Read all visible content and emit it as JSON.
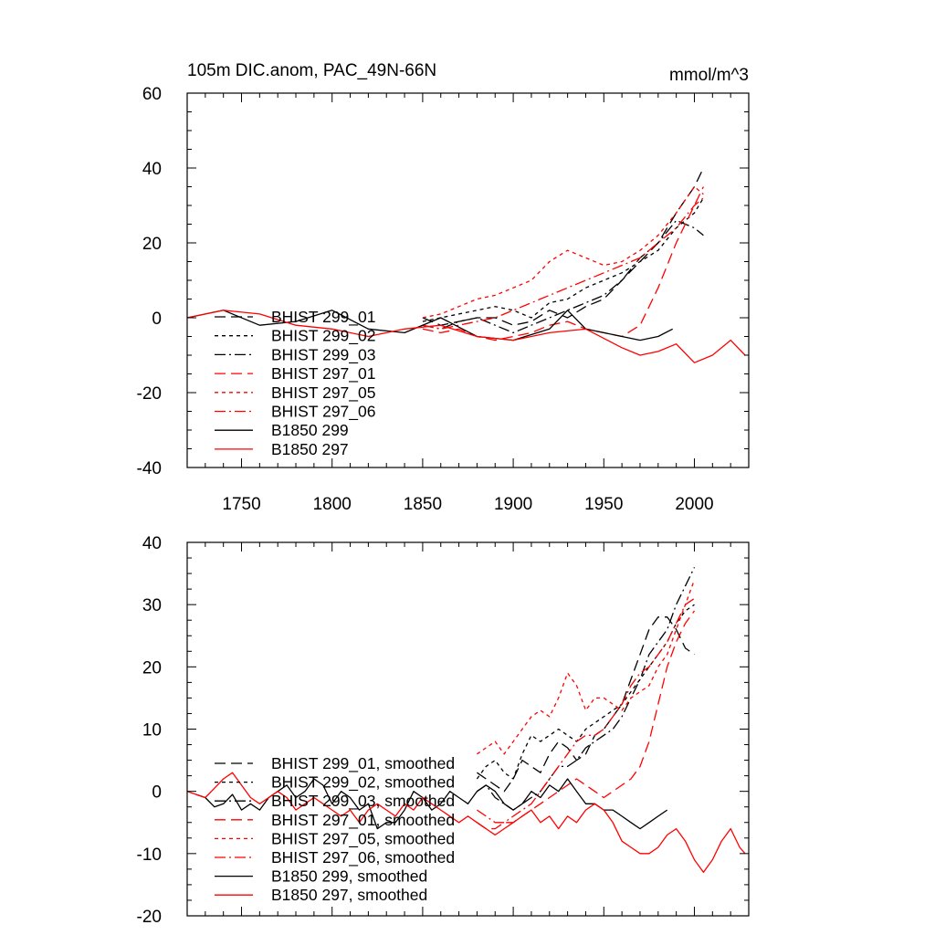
{
  "chart_data": [
    {
      "type": "line",
      "title": "105m DIC.anom, PAC_49N-66N",
      "units": "mmol/m^3",
      "xlim": [
        1720,
        2030
      ],
      "ylim": [
        -40,
        60
      ],
      "y_ticks": [
        -40,
        -20,
        0,
        20,
        40,
        60
      ],
      "x_ticks": [
        1750,
        1800,
        1850,
        1900,
        1950,
        2000
      ],
      "grid": false,
      "legend_position": "lower-left",
      "series": [
        {
          "name": "BHIST 299_01",
          "color": "#000000",
          "dash": "long-dash",
          "x": [
            1850,
            1860,
            1870,
            1880,
            1890,
            1900,
            1910,
            1920,
            1930,
            1940,
            1950,
            1960,
            1970,
            1980,
            1990,
            2000,
            2005
          ],
          "y": [
            0,
            -2,
            -1,
            0,
            0,
            -2,
            -1,
            2,
            0,
            3,
            5,
            10,
            15,
            20,
            28,
            35,
            40
          ]
        },
        {
          "name": "BHIST 299_02",
          "color": "#000000",
          "dash": "short-dash",
          "x": [
            1850,
            1860,
            1870,
            1880,
            1890,
            1900,
            1910,
            1920,
            1930,
            1940,
            1950,
            1960,
            1970,
            1980,
            1990,
            2000,
            2005
          ],
          "y": [
            -1,
            0,
            1,
            2,
            3,
            2,
            0,
            4,
            5,
            8,
            10,
            12,
            15,
            18,
            24,
            28,
            32
          ]
        },
        {
          "name": "BHIST 299_03",
          "color": "#000000",
          "dash": "dash-dot",
          "x": [
            1850,
            1860,
            1870,
            1880,
            1890,
            1900,
            1910,
            1920,
            1930,
            1940,
            1950,
            1960,
            1970,
            1980,
            1990,
            2000,
            2005
          ],
          "y": [
            -2,
            -3,
            -1,
            0,
            -2,
            -4,
            -2,
            0,
            2,
            4,
            6,
            10,
            16,
            20,
            26,
            24,
            22
          ]
        },
        {
          "name": "BHIST 297_01",
          "color": "#ff0000",
          "dash": "long-dash",
          "x": [
            1850,
            1860,
            1870,
            1880,
            1890,
            1900,
            1910,
            1920,
            1930,
            1940,
            1950,
            1960,
            1970,
            1980,
            1990,
            2000,
            2005
          ],
          "y": [
            -3,
            -4,
            -3,
            -5,
            -6,
            -5,
            -4,
            -2,
            -1,
            -3,
            -4,
            -5,
            -2,
            8,
            20,
            30,
            35
          ]
        },
        {
          "name": "BHIST 297_05",
          "color": "#ff0000",
          "dash": "short-dash",
          "x": [
            1850,
            1860,
            1870,
            1880,
            1890,
            1900,
            1910,
            1920,
            1930,
            1940,
            1950,
            1960,
            1970,
            1980,
            1990,
            2000,
            2005
          ],
          "y": [
            0,
            1,
            3,
            5,
            6,
            8,
            10,
            15,
            18,
            16,
            14,
            15,
            18,
            22,
            28,
            35,
            33
          ]
        },
        {
          "name": "BHIST 297_06",
          "color": "#ff0000",
          "dash": "dash-dot",
          "x": [
            1850,
            1860,
            1870,
            1880,
            1890,
            1900,
            1910,
            1920,
            1930,
            1940,
            1950,
            1960,
            1970,
            1980,
            1990,
            2000,
            2005
          ],
          "y": [
            -2,
            -3,
            -2,
            -1,
            0,
            2,
            4,
            6,
            8,
            10,
            12,
            14,
            16,
            20,
            24,
            30,
            32
          ]
        },
        {
          "name": "B1850 299",
          "color": "#000000",
          "dash": "solid",
          "x": [
            1720,
            1740,
            1760,
            1780,
            1800,
            1820,
            1840,
            1860,
            1880,
            1900,
            1920,
            1930,
            1940,
            1950,
            1960,
            1970,
            1980,
            1988
          ],
          "y": [
            0,
            2,
            -2,
            -1,
            2,
            -3,
            -4,
            0,
            -5,
            -6,
            -3,
            2,
            -3,
            -4,
            -5,
            -6,
            -5,
            -3
          ]
        },
        {
          "name": "B1850 297",
          "color": "#ff0000",
          "dash": "solid",
          "x": [
            1720,
            1740,
            1760,
            1780,
            1800,
            1820,
            1840,
            1860,
            1880,
            1900,
            1920,
            1940,
            1960,
            1970,
            1980,
            1990,
            2000,
            2010,
            2020,
            2028
          ],
          "y": [
            0,
            2,
            1,
            -2,
            -3,
            -5,
            -3,
            -2,
            -5,
            -6,
            -4,
            -3,
            -8,
            -10,
            -9,
            -7,
            -12,
            -10,
            -6,
            -10
          ]
        }
      ]
    },
    {
      "type": "line",
      "title": "",
      "xlim": [
        1720,
        2030
      ],
      "ylim": [
        -20,
        40
      ],
      "y_ticks": [
        -20,
        -10,
        0,
        10,
        20,
        30,
        40
      ],
      "x_ticks": [
        1750,
        1800,
        1850,
        1900,
        1950,
        2000
      ],
      "grid": false,
      "legend_position": "lower-left",
      "series": [
        {
          "name": "BHIST 299_01, smoothed",
          "color": "#000000",
          "dash": "long-dash",
          "x": [
            1880,
            1885,
            1890,
            1895,
            1900,
            1905,
            1910,
            1915,
            1920,
            1925,
            1930,
            1935,
            1940,
            1945,
            1950,
            1955,
            1960,
            1965,
            1970,
            1975,
            1980,
            1985,
            1990,
            1995,
            2000
          ],
          "y": [
            3,
            2,
            1,
            0,
            2,
            5,
            4,
            3,
            6,
            8,
            7,
            5,
            6,
            9,
            10,
            12,
            14,
            18,
            22,
            26,
            28,
            28,
            26,
            23,
            22
          ]
        },
        {
          "name": "BHIST 299_02, smoothed",
          "color": "#000000",
          "dash": "short-dash",
          "x": [
            1880,
            1885,
            1890,
            1895,
            1900,
            1905,
            1910,
            1915,
            1920,
            1925,
            1930,
            1935,
            1940,
            1945,
            1950,
            1955,
            1960,
            1965,
            1970,
            1975,
            1980,
            1985,
            1990,
            1995,
            2000
          ],
          "y": [
            2,
            4,
            5,
            3,
            2,
            6,
            9,
            8,
            9,
            10,
            9,
            8,
            10,
            11,
            12,
            13,
            14,
            16,
            18,
            20,
            22,
            24,
            27,
            29,
            30
          ]
        },
        {
          "name": "BHIST 299_03, smoothed",
          "color": "#000000",
          "dash": "dash-dot",
          "x": [
            1880,
            1885,
            1890,
            1895,
            1900,
            1905,
            1910,
            1915,
            1920,
            1925,
            1930,
            1935,
            1940,
            1945,
            1950,
            1955,
            1960,
            1965,
            1970,
            1975,
            1980,
            1985,
            1990,
            1995,
            2000
          ],
          "y": [
            0,
            1,
            -1,
            -2,
            -3,
            -2,
            -1,
            0,
            2,
            4,
            4,
            5,
            7,
            8,
            9,
            10,
            12,
            15,
            18,
            22,
            24,
            26,
            30,
            33,
            36
          ]
        },
        {
          "name": "BHIST 297_01, smoothed",
          "color": "#ff0000",
          "dash": "long-dash",
          "x": [
            1880,
            1885,
            1890,
            1895,
            1900,
            1905,
            1910,
            1915,
            1920,
            1925,
            1930,
            1935,
            1940,
            1945,
            1950,
            1955,
            1960,
            1965,
            1970,
            1975,
            1980,
            1985,
            1990,
            1995,
            2000
          ],
          "y": [
            -5,
            -6,
            -6,
            -5,
            -5,
            -4,
            -3,
            -2,
            -1,
            0,
            1,
            2,
            1,
            0,
            -1,
            0,
            1,
            2,
            4,
            8,
            14,
            20,
            24,
            27,
            29
          ]
        },
        {
          "name": "BHIST 297_05, smoothed",
          "color": "#ff0000",
          "dash": "short-dash",
          "x": [
            1880,
            1885,
            1890,
            1895,
            1900,
            1905,
            1910,
            1915,
            1920,
            1925,
            1930,
            1935,
            1940,
            1945,
            1950,
            1955,
            1960,
            1965,
            1970,
            1975,
            1980,
            1985,
            1990,
            1995,
            2000
          ],
          "y": [
            6,
            7,
            8,
            6,
            8,
            10,
            12,
            13,
            12,
            15,
            19,
            17,
            13,
            15,
            15,
            14,
            13,
            15,
            16,
            17,
            20,
            22,
            26,
            30,
            34
          ]
        },
        {
          "name": "BHIST 297_06, smoothed",
          "color": "#ff0000",
          "dash": "dash-dot",
          "x": [
            1880,
            1885,
            1890,
            1895,
            1900,
            1905,
            1910,
            1915,
            1920,
            1925,
            1930,
            1935,
            1940,
            1945,
            1950,
            1955,
            1960,
            1965,
            1970,
            1975,
            1980,
            1985,
            1990,
            1995,
            2000
          ],
          "y": [
            -3,
            -4,
            -5,
            -5,
            -4,
            -3,
            -2,
            0,
            2,
            4,
            6,
            8,
            9,
            9,
            10,
            12,
            14,
            17,
            19,
            20,
            22,
            24,
            27,
            30,
            31
          ]
        },
        {
          "name": "B1850 299, smoothed",
          "color": "#000000",
          "dash": "solid",
          "x": [
            1725,
            1730,
            1735,
            1740,
            1745,
            1750,
            1755,
            1760,
            1765,
            1770,
            1775,
            1780,
            1785,
            1790,
            1795,
            1800,
            1805,
            1810,
            1815,
            1820,
            1825,
            1830,
            1835,
            1840,
            1845,
            1850,
            1855,
            1860,
            1865,
            1870,
            1875,
            1880,
            1885,
            1890,
            1895,
            1900,
            1905,
            1910,
            1915,
            1920,
            1925,
            1930,
            1935,
            1940,
            1945,
            1950,
            1955,
            1960,
            1965,
            1970,
            1975,
            1980,
            1985
          ],
          "y": [
            -0.5,
            -1,
            -2.5,
            -2,
            -0.5,
            -3,
            -2,
            -3,
            -1,
            0,
            1,
            -1,
            0,
            2,
            1,
            -2,
            0,
            -1,
            -3,
            -2,
            -6,
            -5,
            -5,
            -3,
            0,
            -1,
            -3,
            -2,
            0,
            -1,
            -2,
            0,
            1,
            0,
            -2,
            -3,
            -2,
            0,
            -1,
            1,
            0,
            2,
            0,
            -2,
            -2,
            -3,
            -3,
            -4,
            -5,
            -6,
            -5,
            -4,
            -3
          ]
        },
        {
          "name": "B1850 297, smoothed",
          "color": "#ff0000",
          "dash": "solid",
          "x": [
            1720,
            1725,
            1730,
            1735,
            1740,
            1745,
            1750,
            1755,
            1760,
            1765,
            1770,
            1775,
            1780,
            1785,
            1790,
            1795,
            1800,
            1805,
            1810,
            1815,
            1820,
            1825,
            1830,
            1835,
            1840,
            1845,
            1850,
            1855,
            1860,
            1865,
            1870,
            1875,
            1880,
            1885,
            1890,
            1895,
            1900,
            1905,
            1910,
            1915,
            1920,
            1925,
            1930,
            1935,
            1940,
            1945,
            1950,
            1955,
            1960,
            1965,
            1970,
            1975,
            1980,
            1985,
            1990,
            1995,
            2000,
            2005,
            2010,
            2015,
            2020,
            2025,
            2028
          ],
          "y": [
            0,
            -0.5,
            -1,
            0.5,
            2,
            3,
            1,
            -1,
            -2,
            -1,
            0,
            -1,
            -3,
            -2,
            -1,
            -2,
            -3,
            -4,
            -3,
            -5,
            -3,
            -2,
            -3,
            -4,
            -2,
            -3,
            -1,
            -2,
            -3,
            -4,
            -5,
            -4,
            -5,
            -6,
            -7,
            -6,
            -5,
            -4,
            -3,
            -5,
            -4,
            -6,
            -4,
            -5,
            -3,
            -2,
            -3,
            -5,
            -8,
            -9,
            -10,
            -10,
            -9,
            -7,
            -6,
            -8,
            -11,
            -13,
            -11,
            -8,
            -6,
            -9,
            -10
          ]
        }
      ]
    }
  ]
}
